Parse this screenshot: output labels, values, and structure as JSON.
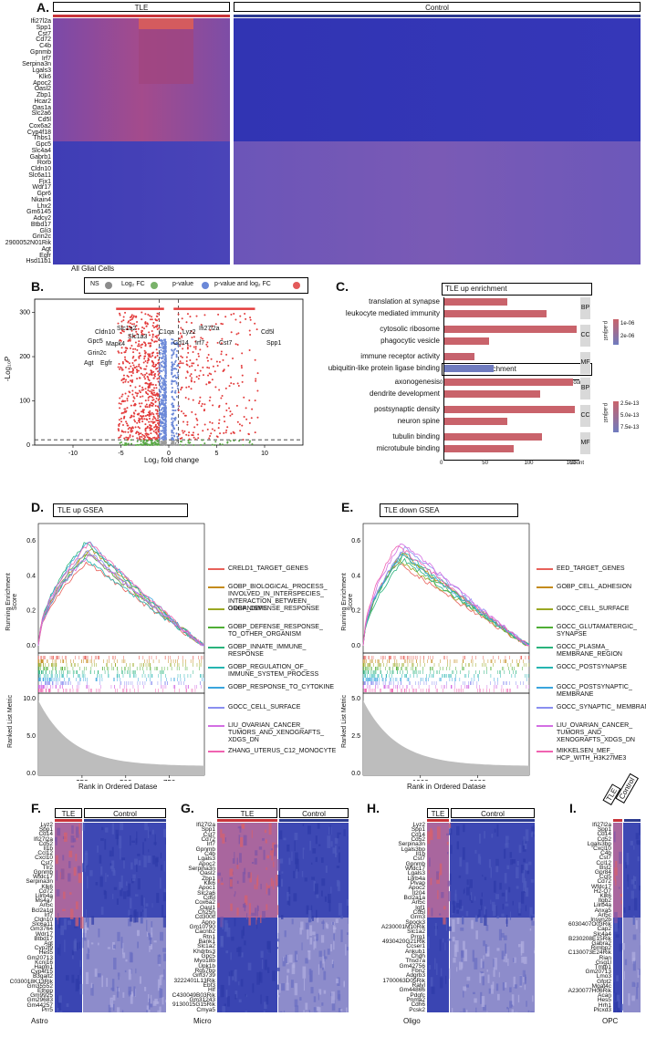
{
  "panelA": {
    "label": "A.",
    "group1": "TLE",
    "group2": "Control",
    "footer": "All Glial Cells",
    "genes": [
      "Ifi27l2a",
      "Spp1",
      "Cst7",
      "Cd72",
      "C4b",
      "Gpnmb",
      "Irf7",
      "Serpina3n",
      "Lgals3",
      "Klk6",
      "Apoc2",
      "Oasl2",
      "Zbp1",
      "Hcar2",
      "Oas1a",
      "Slc2a6",
      "Cd5l",
      "Cox6a2",
      "Cyp4f18",
      "Thbs1",
      "Gpc5",
      "Slc4a4",
      "Gabrb1",
      "Rorb",
      "Cldn10",
      "Slc6a11",
      "Fjx1",
      "Wdr17",
      "Gpr6",
      "Nkain4",
      "Lhx2",
      "Gm6145",
      "Adcy2",
      "Btbd17",
      "Gli3",
      "Grin2c",
      "2900052N01Rik",
      "Agt",
      "Egfr",
      "Hsd11b1"
    ]
  },
  "panelB": {
    "label": "B.",
    "legend": [
      "NS",
      "Log₂ FC",
      "p-value",
      "p-value and log₂ FC"
    ],
    "xlabel": "Log₂ fold change",
    "ylabel": "-Log₁₀P",
    "xticks": [
      "-10",
      "-5",
      "0",
      "5",
      "10"
    ],
    "yticks": [
      "0",
      "100",
      "200",
      "300"
    ],
    "left_genes": [
      "Cldn10",
      "Slc1a2",
      "Slc1a3",
      "Gpc5",
      "Mapk4",
      "Grin2c",
      "Agt",
      "Egfr"
    ],
    "right_genes": [
      "C1qa",
      "Lyz2",
      "Ifi27l2a",
      "Cd5l",
      "Cd14",
      "Irf7",
      "Cst7",
      "Spp1"
    ]
  },
  "panelC": {
    "label": "C.",
    "up_title": "TLE up enrichment",
    "down_title": "TLE down enrichment",
    "legend_title": "p.adjust",
    "up_legend": [
      "1e-06",
      "2e-06"
    ],
    "down_legend": [
      "2.5e-13",
      "5.0e-13",
      "7.5e-13"
    ],
    "count_label": "Count",
    "up_ticks": [
      "0",
      "25",
      "50",
      "75"
    ],
    "down_ticks": [
      "0",
      "50",
      "100",
      "150"
    ],
    "up_terms": [
      {
        "term": "translation at synapse",
        "count": 42,
        "facet": "BP",
        "color": "#c9636b"
      },
      {
        "term": "leukocyte mediated immunity",
        "count": 68,
        "facet": "BP",
        "color": "#c9636b"
      },
      {
        "term": "cytosolic ribosome",
        "count": 88,
        "facet": "CC",
        "color": "#c9636b"
      },
      {
        "term": "phagocytic vesicle",
        "count": 30,
        "facet": "CC",
        "color": "#c9636b"
      },
      {
        "term": "immune receptor activity",
        "count": 20,
        "facet": "MF",
        "color": "#c6636e"
      },
      {
        "term": "ubiquitin-like protein ligase binding",
        "count": 33,
        "facet": "MF",
        "color": "#6f7bbf"
      }
    ],
    "down_terms": [
      {
        "term": "axonogenesis",
        "count": 152,
        "facet": "BP",
        "color": "#c9636b"
      },
      {
        "term": "dendrite development",
        "count": 114,
        "facet": "BP",
        "color": "#c9636b"
      },
      {
        "term": "postsynaptic density",
        "count": 155,
        "facet": "CC",
        "color": "#c9636b"
      },
      {
        "term": "neuron spine",
        "count": 75,
        "facet": "CC",
        "color": "#c9636b"
      },
      {
        "term": "tubulin binding",
        "count": 116,
        "facet": "MF",
        "color": "#c9636b"
      },
      {
        "term": "microtubule binding",
        "count": 82,
        "facet": "MF",
        "color": "#c9636b"
      }
    ]
  },
  "panelD": {
    "label": "D.",
    "title": "TLE up GSEA",
    "ylabel1": "Running Enrichment Score",
    "ylabel2": "Ranked List Metric",
    "xlabel": "Rank in Ordered Datase",
    "yticks": [
      "0.0",
      "0.2",
      "0.4",
      "0.6"
    ],
    "metric_ticks": [
      "0.0",
      "5.0",
      "10.0"
    ],
    "xticks": [
      "250",
      "500",
      "750"
    ],
    "sets": [
      {
        "name": "CRELD1_TARGET_GENES",
        "color": "#e8615a"
      },
      {
        "name": "GOBP_BIOLOGICAL_PROCESS_ INVOLVED_IN_INTERSPECIES_ INTERACTION_BETWEEN_ ORGANISMS",
        "color": "#c48b1c"
      },
      {
        "name": "GOBP_DEFENSE_RESPONSE",
        "color": "#9aa823"
      },
      {
        "name": "GOBP_DEFENSE_RESPONSE_ TO_OTHER_ORGANISM",
        "color": "#4fae35"
      },
      {
        "name": "GOBP_INNATE_IMMUNE_ RESPONSE",
        "color": "#2ab37c"
      },
      {
        "name": "GOBP_REGULATION_OF_ IMMUNE_SYSTEM_PROCESS",
        "color": "#25b5b0"
      },
      {
        "name": "GOBP_RESPONSE_TO_CYTOKINE",
        "color": "#3aa5dd"
      },
      {
        "name": "GOCC_CELL_SURFACE",
        "color": "#8a8ff0"
      },
      {
        "name": "LIU_OVARIAN_CANCER_ TUMORS_AND_XENOGRAFTS_ XDGS_DN",
        "color": "#d36ee3"
      },
      {
        "name": "ZHANG_UTERUS_C12_MONOCYTE",
        "color": "#f063b0"
      }
    ]
  },
  "panelE": {
    "label": "E.",
    "title": "TLE down GSEA",
    "ylabel1": "Running Enrichment Score",
    "ylabel2": "Ranked List Metric",
    "xlabel": "Rank in Ordered Datase",
    "yticks": [
      "0.0",
      "0.2",
      "0.4",
      "0.6"
    ],
    "metric_ticks": [
      "0.0",
      "2.5",
      "5.0"
    ],
    "xticks": [
      "1000",
      "2000"
    ],
    "sets": [
      {
        "name": "EED_TARGET_GENES",
        "color": "#e8615a"
      },
      {
        "name": "GOBP_CELL_ADHESION",
        "color": "#c48b1c"
      },
      {
        "name": "GOCC_CELL_SURFACE",
        "color": "#9aa823"
      },
      {
        "name": "GOCC_GLUTAMATERGIC_ SYNAPSE",
        "color": "#4fae35"
      },
      {
        "name": "GOCC_PLASMA_ MEMBRANE_REGION",
        "color": "#2ab37c"
      },
      {
        "name": "GOCC_POSTSYNAPSE",
        "color": "#25b5b0"
      },
      {
        "name": "GOCC_POSTSYNAPTIC_ MEMBRANE",
        "color": "#3aa5dd"
      },
      {
        "name": "GOCC_SYNAPTIC_ MEMBRANE",
        "color": "#8a8ff0"
      },
      {
        "name": "LIU_OVARIAN_CANCER_ TUMORS_AND_ XENOGRAFTS_XDGS_DN",
        "color": "#d36ee3"
      },
      {
        "name": "MIKKELSEN_MEF_ HCP_WITH_H3K27ME3",
        "color": "#f063b0"
      }
    ]
  },
  "panelF": {
    "label": "F.",
    "group1": "TLE",
    "group2": "Control",
    "footer": "Astro",
    "genes": [
      "Lyz2",
      "Spp1",
      "Cd14",
      "Ifi27l2a",
      "Cd52",
      "Il1b",
      "Ccl12",
      "Cxcl10",
      "Cst7",
      "Tlr2",
      "Gpnmb",
      "Wfdc17",
      "Serpina3n",
      "Klk6",
      "Cd72",
      "Lilrb4a",
      "Ms4a7",
      "Arl5c",
      "Bcl2a1d",
      "Irf7",
      "Cldn10",
      "Slc6a11",
      "Gm3764",
      "Wdr17",
      "Btbd17",
      "Agt",
      "Cyp2j9",
      "Hes5",
      "Gm20713",
      "Kcnj16",
      "Hapln1",
      "Cyp4f15",
      "B3galt2",
      "C030018K13Rik",
      "Gm35552",
      "Ethpp",
      "Gm9925",
      "Gm29683",
      "Gm44257",
      "Prr5"
    ]
  },
  "panelG": {
    "label": "G.",
    "group1": "TLE",
    "group2": "Control",
    "footer": "Micro",
    "genes": [
      "Ifi27l2a",
      "Spp1",
      "Cst7",
      "Cd72",
      "Irf7",
      "Gpnmb",
      "C4b",
      "Lgals3",
      "Apoc2",
      "Serpina3n",
      "Oasl2",
      "Zbp1",
      "Klk6",
      "Apoc1",
      "Slc2a6",
      "Cd5l",
      "Cox6a2",
      "Oasl1",
      "Ch25h",
      "Cd300lf",
      "Apno",
      "Gm10790",
      "Cacnb2",
      "Rtn1",
      "Bank1",
      "Slc1a2",
      "Khdrbs3",
      "Gpc5",
      "Myo18b",
      "Upk1b",
      "Rgs7bp",
      "Gm3739",
      "3222401L13Rik",
      "Ebf3",
      "Hlf",
      "C430049B03Rik",
      "Gm31243",
      "9130015G15Rik",
      "Cmya5"
    ]
  },
  "panelH": {
    "label": "H.",
    "group1": "TLE",
    "group2": "Control",
    "footer": "Oligo",
    "genes": [
      "Lyz2",
      "Spp1",
      "Cd14",
      "Cd52",
      "Serpina3n",
      "Lgals3bp",
      "Il1b",
      "Cst7",
      "Gpnmb",
      "Wfdc17",
      "Lgals3",
      "Lilrb4a",
      "Plvap",
      "Apoc2",
      "Il204",
      "Bcl2a1a",
      "Arl5c",
      "Igf1",
      "Cd5l",
      "Grm3",
      "Spock3",
      "A230001M10Rik",
      "Slc1a2",
      "Prrg1",
      "4930420G21Rik",
      "Ccser1",
      "Ankub1",
      "Chdh",
      "Thsd7a",
      "Gm42756",
      "Fbn2",
      "Adgrb3",
      "1700063D05Rik",
      "Ralyl",
      "Gm44866",
      "Pdgfc",
      "Pnma2",
      "Cdh6",
      "Pcsk2"
    ]
  },
  "panelI": {
    "label": "I.",
    "group1": "TLE",
    "group2": "Control",
    "footer": "OPC",
    "genes": [
      "Ifi27l2a",
      "Spp1",
      "Cd14",
      "Cd52",
      "Lgals3bp",
      "Cxcl10",
      "C4b",
      "Cst7",
      "Ccl12",
      "Bst2",
      "Gpr84",
      "Ccl5",
      "Cd72",
      "Wfdc17",
      "H2-Q7",
      "Klk6",
      "Itgb2",
      "Lilrb4a",
      "Anxa5",
      "Arl5c",
      "Insyn2b",
      "6030407O03Rik",
      "Cap2",
      "Slc4a4",
      "B230208E15Rik",
      "Gabra2",
      "Rimbp2",
      "C130073E24Rik",
      "Rian",
      "Gsg1l",
      "Tmtp1",
      "Gm20713",
      "Lmo3",
      "Gfpt2",
      "Mgat4c",
      "A230077H06Rik",
      "Acan",
      "Hes5",
      "Hrh1",
      "Plcxd3"
    ]
  }
}
